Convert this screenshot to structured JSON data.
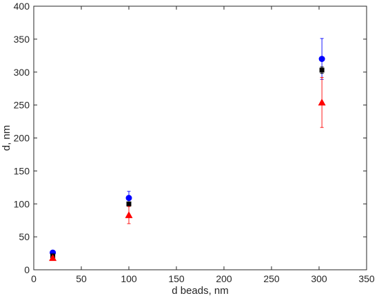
{
  "chart_data": {
    "type": "scatter",
    "xlabel": "d beads, nm",
    "ylabel": "d, nm",
    "xlim": [
      0,
      350
    ],
    "ylim": [
      0,
      400
    ],
    "x_ticks": [
      0,
      50,
      100,
      150,
      200,
      250,
      300,
      350
    ],
    "y_ticks": [
      0,
      50,
      100,
      150,
      200,
      250,
      300,
      350,
      400
    ],
    "grid": false,
    "legend": "none",
    "series": [
      {
        "marker": "circle",
        "color": "#0000ff",
        "points": [
          {
            "x": 20,
            "y": 26,
            "err": 2
          },
          {
            "x": 100,
            "y": 109,
            "err": 10
          },
          {
            "x": 303,
            "y": 320,
            "err": 31
          }
        ]
      },
      {
        "marker": "square",
        "color": "#000000",
        "points": [
          {
            "x": 20,
            "y": 21,
            "err": 1
          },
          {
            "x": 100,
            "y": 100,
            "err": 3
          },
          {
            "x": 303,
            "y": 303,
            "err": 5
          }
        ]
      },
      {
        "marker": "triangle",
        "color": "#ff0000",
        "points": [
          {
            "x": 20,
            "y": 18,
            "err": 2
          },
          {
            "x": 100,
            "y": 83,
            "err": 13
          },
          {
            "x": 303,
            "y": 254,
            "err": 38
          }
        ]
      }
    ]
  }
}
